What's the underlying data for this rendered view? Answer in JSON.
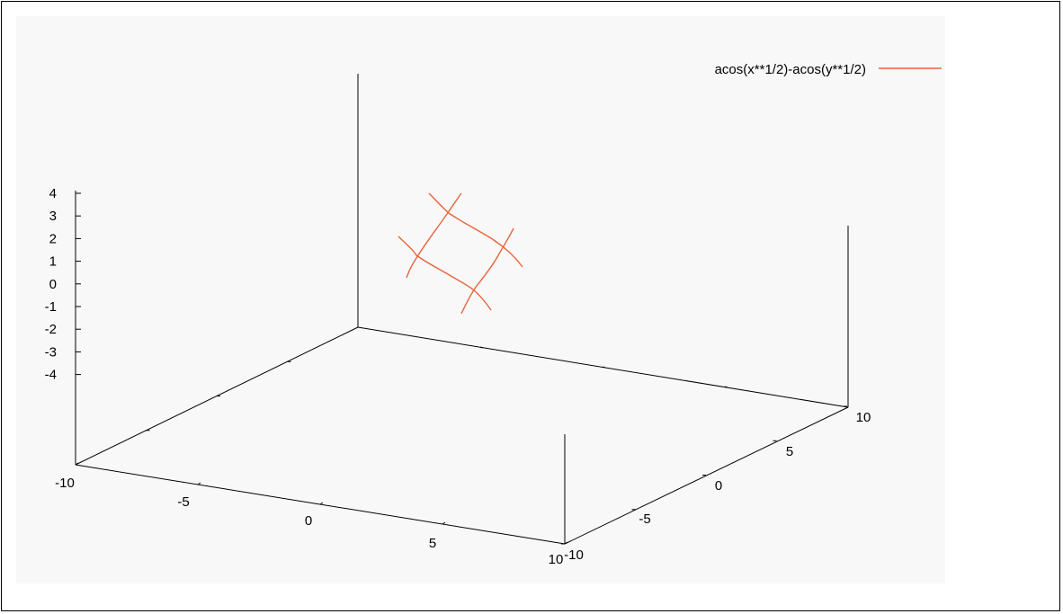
{
  "chart_data": {
    "type": "surface-3d",
    "title": "",
    "legend": {
      "position": "top-right",
      "entries": [
        {
          "label": "acos(x**1/2)-acos(y**1/2)",
          "color": "#e8643c"
        }
      ]
    },
    "x_axis": {
      "range": [
        -10,
        10
      ],
      "ticks": [
        "-10",
        "-5",
        "0",
        "5",
        "10"
      ]
    },
    "y_axis": {
      "range": [
        -10,
        10
      ],
      "ticks": [
        "-10",
        "-5",
        "0",
        "5",
        "10"
      ]
    },
    "z_axis": {
      "range": [
        -4,
        4
      ],
      "ticks": [
        "4",
        "3",
        "2",
        "1",
        "0",
        "-1",
        "-2",
        "-3",
        "-4"
      ]
    },
    "grid": false,
    "series": [
      {
        "name": "acos(x**1/2)-acos(y**1/2)",
        "color": "#e8643c",
        "style": "line"
      }
    ]
  }
}
